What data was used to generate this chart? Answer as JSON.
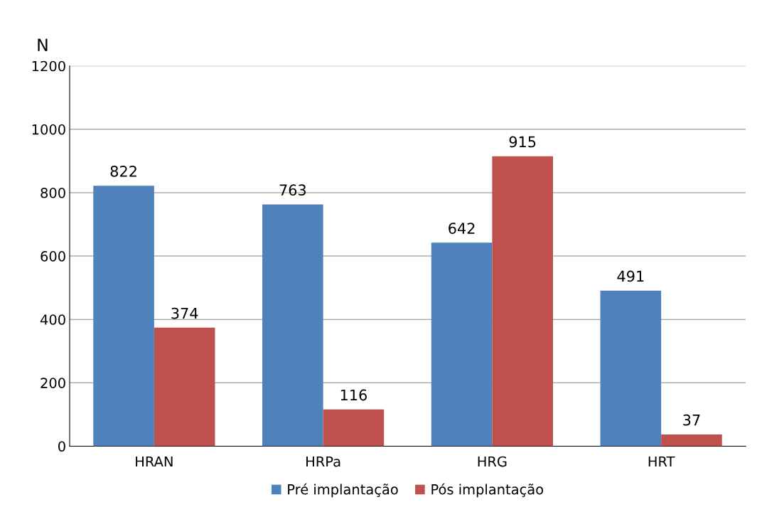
{
  "chart_data": {
    "type": "bar",
    "ylabel": "N",
    "categories": [
      "HRAN",
      "HRPa",
      "HRG",
      "HRT"
    ],
    "series": [
      {
        "name": "Pré implantação",
        "color": "#4f81bd",
        "values": [
          822,
          763,
          642,
          491
        ]
      },
      {
        "name": "Pós implantação",
        "color": "#c0504d",
        "values": [
          374,
          116,
          915,
          37
        ]
      }
    ],
    "ylim": [
      0,
      1200
    ],
    "yticks": [
      0,
      200,
      400,
      600,
      800,
      1000,
      1200
    ],
    "grid": "y",
    "legend": "bottom",
    "data_labels": true
  }
}
